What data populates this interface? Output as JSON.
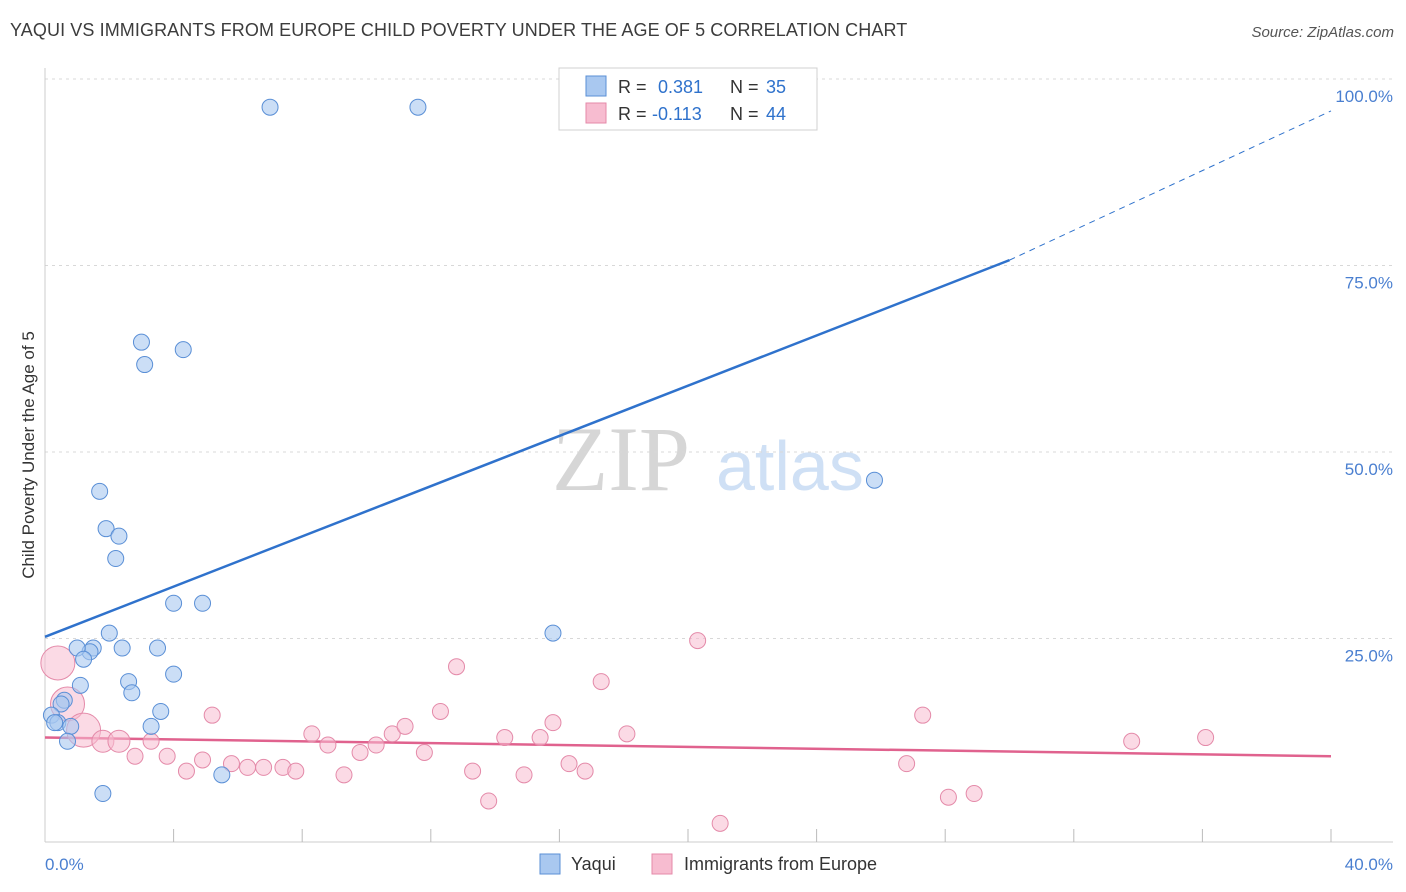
{
  "header": {
    "title": "YAQUI VS IMMIGRANTS FROM EUROPE CHILD POVERTY UNDER THE AGE OF 5 CORRELATION CHART",
    "source": "Source: ZipAtlas.com"
  },
  "watermark": {
    "zip": "ZIP",
    "atlas": "atlas"
  },
  "colors": {
    "yaqui_fill": "#a9c8f0",
    "yaqui_stroke": "#5a8fd6",
    "yaqui_line": "#2f72cc",
    "europe_fill": "#f7bcd0",
    "europe_stroke": "#e48aa9",
    "europe_line": "#e0628e",
    "axis_label": "#4a7fd0",
    "grid": "#d8d8d8"
  },
  "legend": {
    "series": [
      {
        "r_label": "R = ",
        "r_value": "0.381",
        "n_label": "N = ",
        "n_value": "35"
      },
      {
        "r_label": "R = ",
        "r_value": "-0.113",
        "n_label": "N = ",
        "n_value": "44"
      }
    ]
  },
  "chart_data": {
    "type": "scatter",
    "title": "YAQUI VS IMMIGRANTS FROM EUROPE CHILD POVERTY UNDER THE AGE OF 5 CORRELATION CHART",
    "xlabel": "",
    "ylabel": "Child Poverty Under the Age of 5",
    "xlim": [
      0,
      40
    ],
    "ylim": [
      0,
      100
    ],
    "x_tick_labels": [
      "0.0%",
      "40.0%"
    ],
    "y_tick_labels": [
      {
        "value": 25,
        "label": "25.0%"
      },
      {
        "value": 50,
        "label": "50.0%"
      },
      {
        "value": 75,
        "label": "75.0%"
      },
      {
        "value": 100,
        "label": "100.0%"
      }
    ],
    "series": [
      {
        "name": "Yaqui",
        "r": 0.381,
        "n": 35,
        "trend": {
          "x0": 0,
          "y0": 27.5,
          "x1": 30,
          "y1": 78,
          "dashed_to_x": 40,
          "dashed_to_y": 98
        },
        "points": [
          [
            7.0,
            98.5
          ],
          [
            11.6,
            98.5
          ],
          [
            3.0,
            67
          ],
          [
            3.1,
            64
          ],
          [
            4.3,
            66
          ],
          [
            1.7,
            47
          ],
          [
            1.9,
            42
          ],
          [
            2.3,
            41
          ],
          [
            2.2,
            38
          ],
          [
            4.0,
            32
          ],
          [
            4.9,
            32
          ],
          [
            2.0,
            28
          ],
          [
            1.5,
            26
          ],
          [
            3.5,
            26
          ],
          [
            1.4,
            25.5
          ],
          [
            1.0,
            26
          ],
          [
            2.4,
            26
          ],
          [
            1.2,
            24.5
          ],
          [
            4.0,
            22.5
          ],
          [
            2.6,
            21.5
          ],
          [
            1.1,
            21
          ],
          [
            2.7,
            20
          ],
          [
            0.6,
            19
          ],
          [
            0.5,
            18.5
          ],
          [
            3.6,
            17.5
          ],
          [
            0.2,
            17
          ],
          [
            0.4,
            16
          ],
          [
            0.3,
            16
          ],
          [
            0.8,
            15.5
          ],
          [
            3.3,
            15.5
          ],
          [
            0.7,
            13.5
          ],
          [
            5.5,
            9
          ],
          [
            1.8,
            6.5
          ],
          [
            15.8,
            28
          ],
          [
            25.8,
            48.5
          ]
        ]
      },
      {
        "name": "Immigrants from Europe",
        "r": -0.113,
        "n": 44,
        "trend": {
          "x0": 0,
          "y0": 14,
          "x1": 40,
          "y1": 11.5
        },
        "points": [
          [
            0.4,
            24,
            3
          ],
          [
            0.7,
            18.5,
            3
          ],
          [
            1.2,
            15,
            3
          ],
          [
            1.8,
            13.5,
            2
          ],
          [
            2.3,
            13.5,
            2
          ],
          [
            2.8,
            11.5,
            1
          ],
          [
            3.3,
            13.5,
            1
          ],
          [
            3.8,
            11.5,
            1
          ],
          [
            4.4,
            9.5,
            1
          ],
          [
            4.9,
            11,
            1
          ],
          [
            5.2,
            17,
            1
          ],
          [
            5.8,
            10.5,
            1
          ],
          [
            6.3,
            10,
            1
          ],
          [
            6.8,
            10,
            1
          ],
          [
            7.4,
            10,
            1
          ],
          [
            7.8,
            9.5,
            1
          ],
          [
            8.3,
            14.5,
            1
          ],
          [
            8.8,
            13,
            1
          ],
          [
            9.3,
            9,
            1
          ],
          [
            9.8,
            12,
            1
          ],
          [
            10.3,
            13,
            1
          ],
          [
            10.8,
            14.5,
            1
          ],
          [
            11.2,
            15.5,
            1
          ],
          [
            11.8,
            12,
            1
          ],
          [
            12.3,
            17.5,
            1
          ],
          [
            12.8,
            23.5,
            1
          ],
          [
            13.3,
            9.5,
            1
          ],
          [
            13.8,
            5.5,
            1
          ],
          [
            14.3,
            14,
            1
          ],
          [
            14.9,
            9,
            1
          ],
          [
            15.4,
            14,
            1
          ],
          [
            15.8,
            16,
            1
          ],
          [
            16.3,
            10.5,
            1
          ],
          [
            16.8,
            9.5,
            1
          ],
          [
            17.3,
            21.5,
            1
          ],
          [
            18.1,
            14.5,
            1
          ],
          [
            20.3,
            27,
            1
          ],
          [
            21.0,
            2.5,
            1
          ],
          [
            26.8,
            10.5,
            1
          ],
          [
            27.3,
            17,
            1
          ],
          [
            28.1,
            6,
            1
          ],
          [
            28.9,
            6.5,
            1
          ],
          [
            33.8,
            13.5,
            1
          ],
          [
            36.1,
            14,
            1
          ]
        ]
      }
    ]
  }
}
